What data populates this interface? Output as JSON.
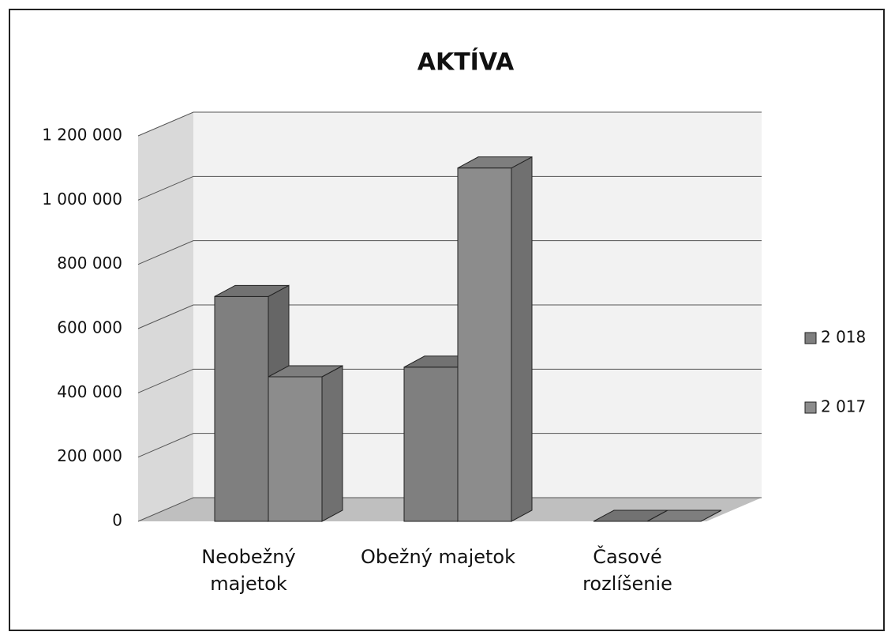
{
  "chart_data": {
    "type": "bar3d",
    "title": "AKTÍVA",
    "categories": [
      "Neobežný majetok",
      "Obežný majetok",
      "Časové rozlíšenie"
    ],
    "series": [
      {
        "name": "2 018",
        "color": "#7f7f7f",
        "values": [
          700000,
          480000,
          0
        ]
      },
      {
        "name": "2 017",
        "color": "#8c8c8c",
        "values": [
          450000,
          1100000,
          0
        ]
      }
    ],
    "ylim": [
      0,
      1200000
    ],
    "yticks": [
      0,
      {
        "value": 200000,
        "label": "200 000"
      },
      {
        "value": 400000,
        "label": "400 000"
      },
      {
        "value": 600000,
        "label": "600 000"
      },
      {
        "value": 800000,
        "label": "800 000"
      },
      {
        "value": 1000000,
        "label": "1 000 000"
      },
      {
        "value": 1200000,
        "label": "1 200 000"
      }
    ],
    "grid": true,
    "legend": "right"
  }
}
